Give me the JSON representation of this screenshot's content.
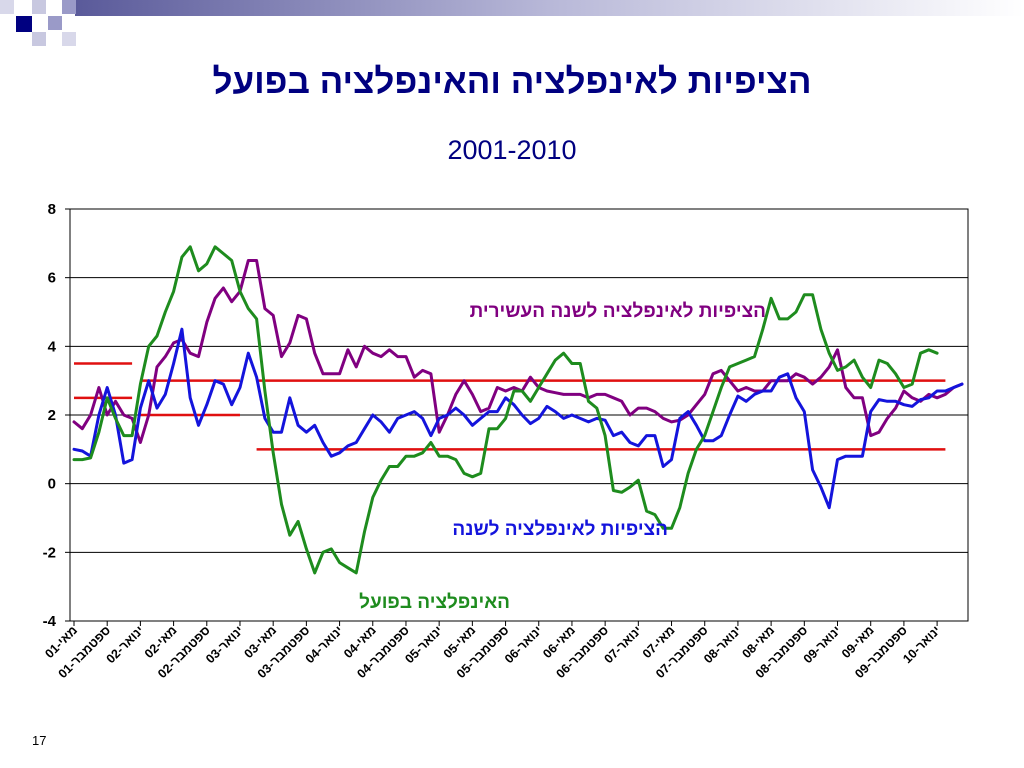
{
  "slide": {
    "title": "הציפיות לאינפלציה והאינפלציה בפועל",
    "subtitle": "2001-2010",
    "slide_number": "17",
    "colors": {
      "title": "#000080",
      "expectations_10y": "#800080",
      "expectations_1y": "#1414dc",
      "actual_inflation": "#1e8c1e",
      "target_lines": "#e01010"
    }
  },
  "chart_data": {
    "type": "line",
    "ylim": [
      -4,
      8
    ],
    "yticks": [
      "8",
      "6",
      "4",
      "2",
      "0",
      "-2",
      "-4"
    ],
    "x_tick_labels": [
      "מאי-01",
      "ספטמבר-01",
      "ינואר-02",
      "מאי-02",
      "ספטמבר-02",
      "ינואר-03",
      "מאי-03",
      "ספטמבר-03",
      "ינואר-04",
      "מאי-04",
      "ספטמבר-04",
      "ינואר-05",
      "מאי-05",
      "ספטמבר-05",
      "ינואר-06",
      "מאי-06",
      "ספטמבר-06",
      "ינואר-07",
      "מאי-07",
      "ספטמבר-07",
      "ינואר-08",
      "מאי-08",
      "ספטמבר-08",
      "ינואר-09",
      "מאי-09",
      "ספטמבר-09",
      "ינואר-10"
    ],
    "grid": "horizontal",
    "series": [
      {
        "name": "הציפיות לאינפלציה לשנה העשירית",
        "color": "#800080",
        "values": [
          1.8,
          1.6,
          2.0,
          2.8,
          2.0,
          2.4,
          2.0,
          1.9,
          1.2,
          2.0,
          3.4,
          3.7,
          4.1,
          4.2,
          3.8,
          3.7,
          4.7,
          5.4,
          5.7,
          5.3,
          5.6,
          6.5,
          6.5,
          5.1,
          4.9,
          3.7,
          4.1,
          4.9,
          4.8,
          3.8,
          3.2,
          3.2,
          3.2,
          3.9,
          3.4,
          4.0,
          3.8,
          3.7,
          3.9,
          3.7,
          3.7,
          3.1,
          3.3,
          3.2,
          1.5,
          2.0,
          2.6,
          3.0,
          2.6,
          2.1,
          2.2,
          2.8,
          2.7,
          2.8,
          2.7,
          3.1,
          2.8,
          2.7,
          2.65,
          2.6,
          2.6,
          2.6,
          2.5,
          2.6,
          2.6,
          2.5,
          2.4,
          2.0,
          2.2,
          2.2,
          2.1,
          1.9,
          1.8,
          1.85,
          2.0,
          2.3,
          2.6,
          3.2,
          3.3,
          3.0,
          2.7,
          2.8,
          2.7,
          2.7,
          3.0,
          3.0,
          3.0,
          3.2,
          3.1,
          2.9,
          3.1,
          3.4,
          3.9,
          2.8,
          2.5,
          2.5,
          1.4,
          1.5,
          1.9,
          2.2,
          2.7,
          2.5,
          2.4,
          2.6,
          2.5,
          2.6,
          2.8,
          2.9
        ]
      },
      {
        "name": "הציפיות לאינפלציה לשנה",
        "color": "#1414dc",
        "values": [
          1.0,
          0.95,
          0.8,
          2.0,
          2.8,
          2.0,
          0.6,
          0.7,
          2.2,
          3.0,
          2.2,
          2.6,
          3.5,
          4.5,
          2.5,
          1.7,
          2.3,
          3.0,
          2.9,
          2.3,
          2.8,
          3.8,
          3.1,
          1.9,
          1.5,
          1.5,
          2.5,
          1.7,
          1.5,
          1.7,
          1.2,
          0.8,
          0.9,
          1.1,
          1.2,
          1.6,
          2.0,
          1.8,
          1.5,
          1.9,
          2.0,
          2.1,
          1.9,
          1.4,
          1.9,
          2.0,
          2.2,
          2.0,
          1.7,
          1.9,
          2.1,
          2.1,
          2.5,
          2.3,
          2.0,
          1.75,
          1.9,
          2.25,
          2.1,
          1.9,
          2.0,
          1.9,
          1.8,
          1.9,
          1.85,
          1.4,
          1.5,
          1.2,
          1.1,
          1.4,
          1.4,
          0.5,
          0.7,
          1.9,
          2.1,
          1.7,
          1.25,
          1.25,
          1.4,
          2.0,
          2.55,
          2.4,
          2.6,
          2.7,
          2.7,
          3.1,
          3.2,
          2.5,
          2.1,
          0.4,
          -0.1,
          -0.7,
          0.7,
          0.8,
          0.8,
          0.8,
          2.1,
          2.45,
          2.4,
          2.4,
          2.3,
          2.25,
          2.45,
          2.5,
          2.7,
          2.7,
          2.8,
          2.9
        ]
      },
      {
        "name": "האינפלציה בפועל",
        "color": "#1e8c1e",
        "values": [
          0.7,
          0.7,
          0.75,
          1.5,
          2.5,
          1.9,
          1.4,
          1.4,
          2.9,
          4.0,
          4.3,
          5.0,
          5.6,
          6.6,
          6.9,
          6.2,
          6.4,
          6.9,
          6.7,
          6.5,
          5.6,
          5.1,
          4.8,
          2.7,
          0.9,
          -0.6,
          -1.5,
          -1.1,
          -1.9,
          -2.6,
          -2.0,
          -1.9,
          -2.3,
          -2.45,
          -2.6,
          -1.4,
          -0.4,
          0.1,
          0.5,
          0.5,
          0.8,
          0.8,
          0.9,
          1.2,
          0.8,
          0.8,
          0.7,
          0.3,
          0.2,
          0.3,
          1.6,
          1.6,
          1.9,
          2.7,
          2.7,
          2.4,
          2.8,
          3.2,
          3.6,
          3.8,
          3.5,
          3.5,
          2.4,
          2.2,
          1.4,
          -0.2,
          -0.25,
          -0.1,
          0.1,
          -0.8,
          -0.9,
          -1.3,
          -1.3,
          -0.7,
          0.3,
          1.0,
          1.4,
          2.1,
          2.8,
          3.4,
          3.5,
          3.6,
          3.7,
          4.5,
          5.4,
          4.8,
          4.8,
          5.0,
          5.5,
          5.5,
          4.5,
          3.8,
          3.3,
          3.4,
          3.6,
          3.1,
          2.8,
          3.6,
          3.5,
          3.2,
          2.8,
          2.9,
          3.8,
          3.9,
          3.8
        ]
      }
    ],
    "target_segments": [
      {
        "value": 3.5,
        "from_month": 0,
        "to_month": 7
      },
      {
        "value": 2.5,
        "from_month": 0,
        "to_month": 7
      },
      {
        "value": 3.0,
        "from_month": 8,
        "to_month": 20
      },
      {
        "value": 2.0,
        "from_month": 8,
        "to_month": 20
      },
      {
        "value": 3.0,
        "from_month": 22,
        "to_month": 105
      },
      {
        "value": 1.0,
        "from_month": 22,
        "to_month": 105
      }
    ],
    "annotations": [
      {
        "text": "הציפיות לאינפלציה לשנה העשירית",
        "color": "#800080"
      },
      {
        "text": "הציפיות לאינפלציה לשנה",
        "color": "#1414dc"
      },
      {
        "text": "האינפלציה בפועל",
        "color": "#1e8c1e"
      }
    ]
  }
}
